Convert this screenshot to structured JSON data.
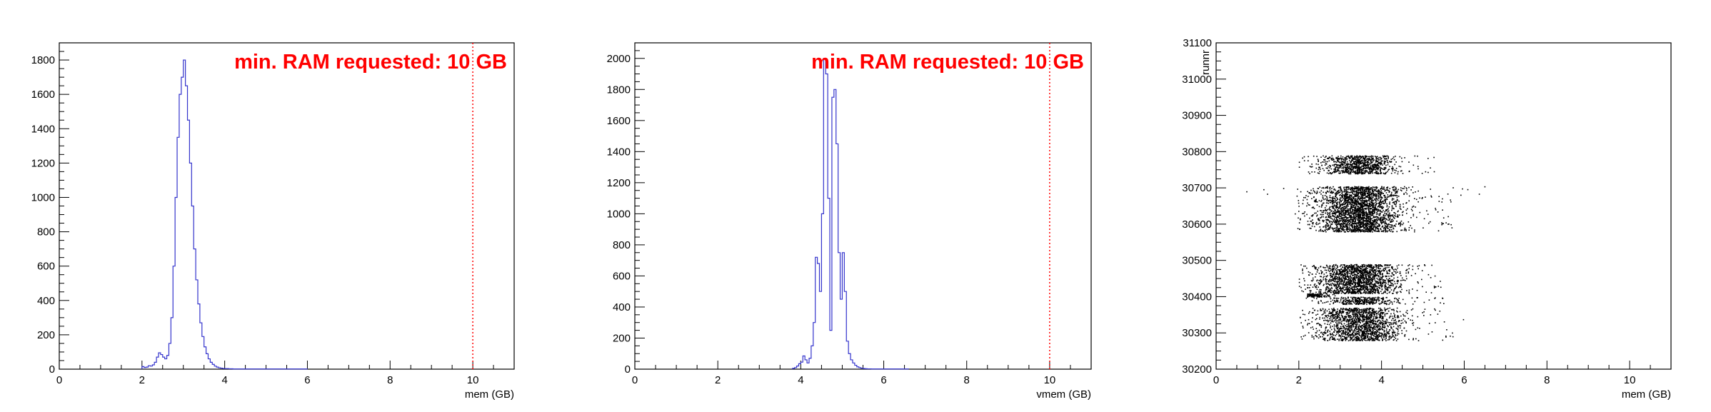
{
  "chart_data": [
    {
      "type": "histogram",
      "xlabel": "mem (GB)",
      "ylabel": "",
      "xlim": [
        0,
        11
      ],
      "ylim": [
        0,
        1900
      ],
      "x_ticks": [
        0,
        2,
        4,
        6,
        8,
        10
      ],
      "y_ticks": [
        0,
        200,
        400,
        600,
        800,
        1000,
        1200,
        1400,
        1600,
        1800
      ],
      "bin_width": 0.05,
      "bin_start": 2.0,
      "counts": [
        15,
        10,
        12,
        20,
        18,
        25,
        40,
        70,
        95,
        85,
        70,
        60,
        80,
        150,
        300,
        600,
        1000,
        1350,
        1600,
        1700,
        1800,
        1650,
        1450,
        1200,
        950,
        700,
        520,
        380,
        270,
        190,
        130,
        90,
        60,
        40,
        28,
        18,
        12,
        8,
        6,
        4,
        3,
        3,
        2,
        2,
        1,
        1,
        1,
        1,
        1,
        1,
        1,
        1,
        1,
        1,
        1,
        1,
        1,
        1,
        1,
        1,
        1,
        1,
        1,
        1,
        1,
        1,
        1,
        1,
        1,
        1,
        1,
        1,
        1,
        1,
        1,
        1,
        1,
        1,
        1,
        1
      ],
      "color": "#3333cc",
      "threshold_line": {
        "x": 10,
        "color": "#ff0000",
        "style": "dotted"
      },
      "annotation": "min. RAM requested: 10 GB",
      "annotation_color": "#ff0000"
    },
    {
      "type": "histogram",
      "xlabel": "vmem (GB)",
      "ylabel": "",
      "xlim": [
        0,
        11
      ],
      "ylim": [
        0,
        2100
      ],
      "x_ticks": [
        0,
        2,
        4,
        6,
        8,
        10
      ],
      "y_ticks": [
        0,
        200,
        400,
        600,
        800,
        1000,
        1200,
        1400,
        1600,
        1800,
        2000
      ],
      "bin_width": 0.05,
      "bin_start": 3.8,
      "counts": [
        5,
        10,
        20,
        35,
        45,
        85,
        60,
        40,
        70,
        150,
        300,
        720,
        680,
        500,
        1000,
        2000,
        1900,
        1100,
        250,
        1750,
        1800,
        1450,
        750,
        450,
        750,
        500,
        180,
        100,
        60,
        40,
        25,
        15,
        10,
        6,
        4,
        3,
        2,
        2,
        1,
        1,
        1,
        1,
        1,
        1,
        1,
        1,
        1,
        1,
        1,
        1,
        1,
        1,
        1,
        1,
        1,
        1
      ],
      "color": "#3333cc",
      "threshold_line": {
        "x": 10,
        "color": "#ff0000",
        "style": "dotted"
      },
      "annotation": "min. RAM requested: 10 GB",
      "annotation_color": "#ff0000"
    },
    {
      "type": "scatter",
      "xlabel": "mem (GB)",
      "ylabel": "runnr",
      "xlim": [
        0,
        11
      ],
      "ylim": [
        30200,
        31100
      ],
      "x_ticks": [
        0,
        2,
        4,
        6,
        8,
        10
      ],
      "y_ticks": [
        30200,
        30300,
        30400,
        30500,
        30600,
        30700,
        30800,
        30900,
        31000,
        31100
      ],
      "point_color": "#000000",
      "bands": [
        {
          "run_min": 30740,
          "run_max": 30790,
          "mem_center": 3.4,
          "mem_spread": 0.45,
          "mem_min": 2.0,
          "mem_max": 5.4,
          "n": 900
        },
        {
          "run_min": 30680,
          "run_max": 30705,
          "mem_center": 3.5,
          "mem_spread": 0.5,
          "mem_min": 0.5,
          "mem_max": 6.5,
          "n": 500
        },
        {
          "run_min": 30580,
          "run_max": 30680,
          "mem_center": 3.4,
          "mem_spread": 0.5,
          "mem_min": 1.9,
          "mem_max": 5.7,
          "n": 2200
        },
        {
          "run_min": 30410,
          "run_max": 30490,
          "mem_center": 3.4,
          "mem_spread": 0.5,
          "mem_min": 2.0,
          "mem_max": 5.5,
          "n": 1700
        },
        {
          "run_min": 30400,
          "run_max": 30410,
          "mem_center": 2.4,
          "mem_spread": 0.15,
          "mem_min": 2.2,
          "mem_max": 2.9,
          "n": 120
        },
        {
          "run_min": 30380,
          "run_max": 30400,
          "mem_center": 3.5,
          "mem_spread": 0.45,
          "mem_min": 2.1,
          "mem_max": 5.5,
          "n": 350
        },
        {
          "run_min": 30330,
          "run_max": 30370,
          "mem_center": 3.4,
          "mem_spread": 0.5,
          "mem_min": 2.0,
          "mem_max": 6.0,
          "n": 700
        },
        {
          "run_min": 30280,
          "run_max": 30330,
          "mem_center": 3.5,
          "mem_spread": 0.5,
          "mem_min": 2.0,
          "mem_max": 5.8,
          "n": 900
        }
      ]
    }
  ]
}
